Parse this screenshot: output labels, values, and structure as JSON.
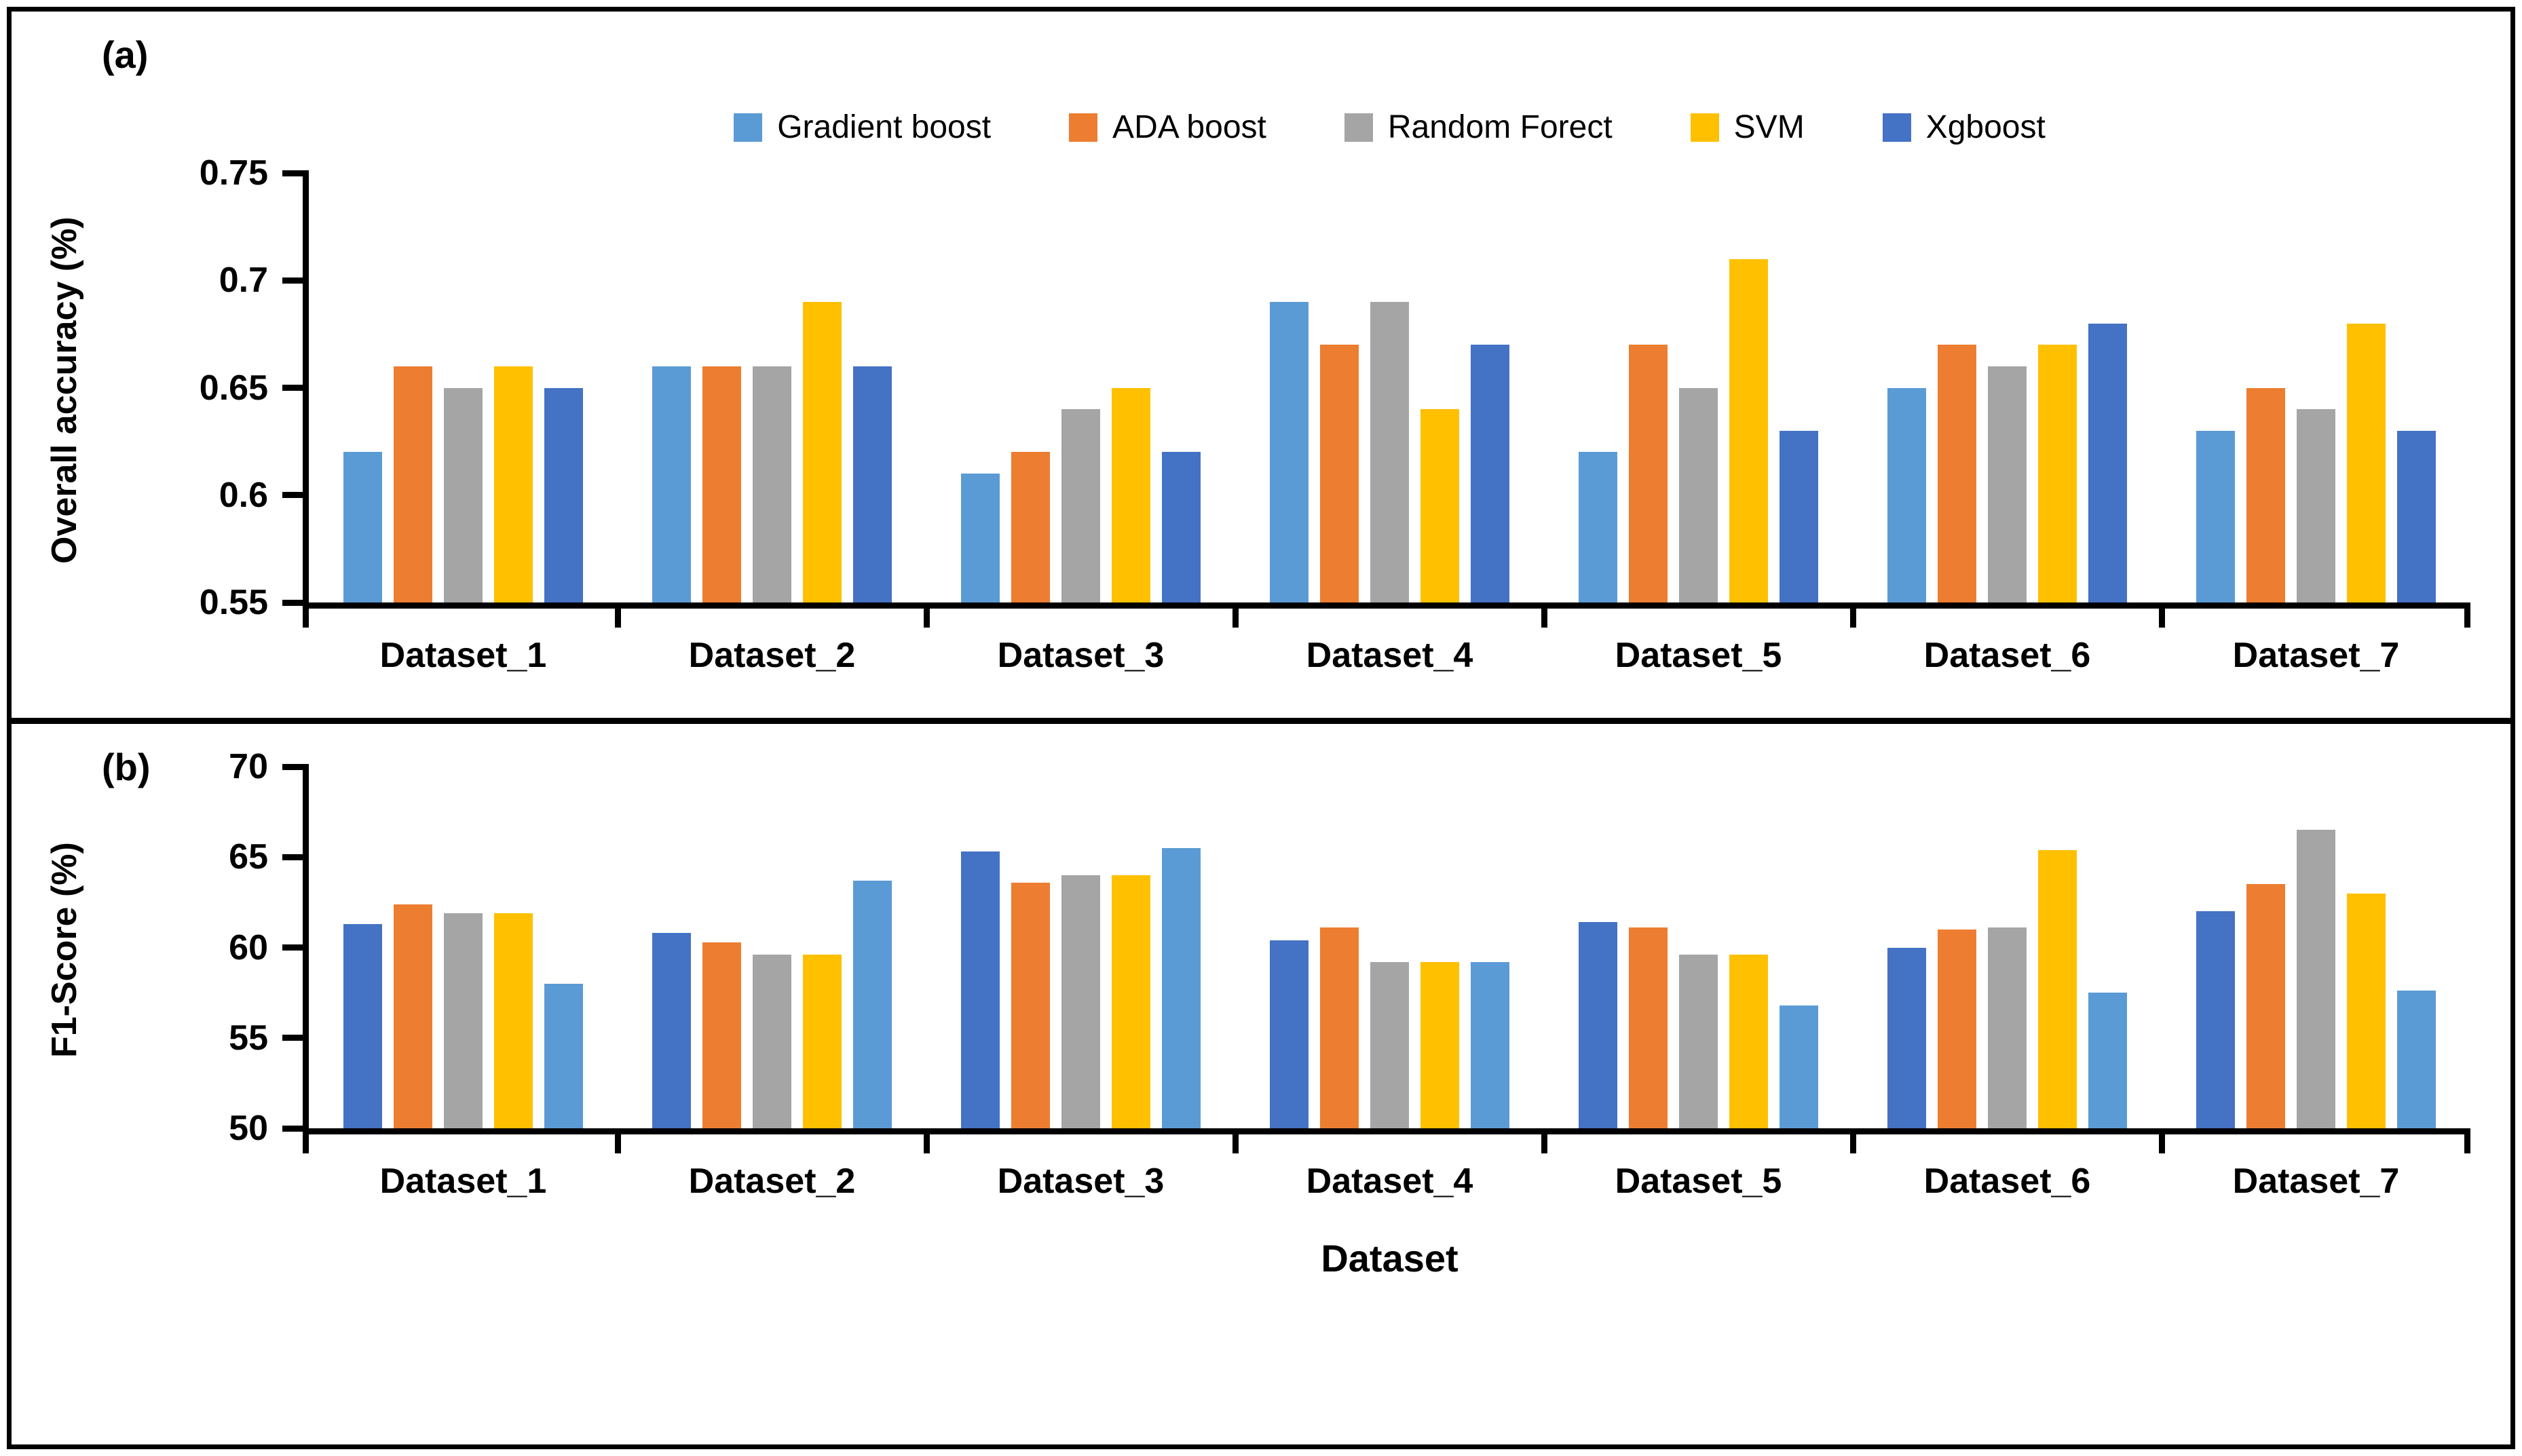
{
  "figure": {
    "panel_a_tag": "(a)",
    "panel_b_tag": "(b)",
    "background_color": "#ffffff",
    "border_color": "#000000"
  },
  "legend": {
    "position": "top-center",
    "items": [
      {
        "label": "Gradient boost",
        "color": "#5B9BD5"
      },
      {
        "label": "ADA boost",
        "color": "#ED7D31"
      },
      {
        "label": "Random Forect",
        "color": "#A5A5A5"
      },
      {
        "label": "SVM",
        "color": "#FFC000"
      },
      {
        "label": "Xgboost",
        "color": "#4472C4"
      }
    ]
  },
  "chart_data": [
    {
      "id": "a",
      "type": "bar",
      "panel_tag": "(a)",
      "title": "",
      "xlabel": "",
      "ylabel": "Overall accuracy (%)",
      "ylim": [
        0.55,
        0.75
      ],
      "y_ticks": [
        0.75,
        0.7,
        0.65,
        0.6,
        0.55
      ],
      "y_tick_labels": [
        "0.75",
        "0.7",
        "0.65",
        "0.6",
        "0.55"
      ],
      "grid": false,
      "legend_position": "top",
      "show_legend": true,
      "categories": [
        "Dataset_1",
        "Dataset_2",
        "Dataset_3",
        "Dataset_4",
        "Dataset_5",
        "Dataset_6",
        "Dataset_7"
      ],
      "series": [
        {
          "name": "Gradient boost",
          "color": "#5B9BD5",
          "values": [
            0.62,
            0.66,
            0.61,
            0.69,
            0.62,
            0.65,
            0.63
          ]
        },
        {
          "name": "ADA boost",
          "color": "#ED7D31",
          "values": [
            0.66,
            0.66,
            0.62,
            0.67,
            0.67,
            0.67,
            0.65
          ]
        },
        {
          "name": "Random Forect",
          "color": "#A5A5A5",
          "values": [
            0.65,
            0.66,
            0.64,
            0.69,
            0.65,
            0.66,
            0.64
          ]
        },
        {
          "name": "SVM",
          "color": "#FFC000",
          "values": [
            0.66,
            0.69,
            0.65,
            0.64,
            0.71,
            0.67,
            0.68
          ]
        },
        {
          "name": "Xgboost",
          "color": "#4472C4",
          "values": [
            0.65,
            0.66,
            0.62,
            0.67,
            0.63,
            0.68,
            0.63
          ]
        }
      ]
    },
    {
      "id": "b",
      "type": "bar",
      "panel_tag": "(b)",
      "title": "",
      "xlabel": "Dataset",
      "ylabel": "F1-Score (%)",
      "ylim": [
        50,
        70
      ],
      "y_ticks": [
        70,
        65,
        60,
        55,
        50
      ],
      "y_tick_labels": [
        "70",
        "65",
        "60",
        "55",
        "50"
      ],
      "grid": false,
      "legend_position": "none",
      "show_legend": false,
      "categories": [
        "Dataset_1",
        "Dataset_2",
        "Dataset_3",
        "Dataset_4",
        "Dataset_5",
        "Dataset_6",
        "Dataset_7"
      ],
      "series": [
        {
          "name": "Xgboost",
          "color": "#4472C4",
          "values": [
            61.3,
            60.8,
            65.3,
            60.4,
            61.4,
            60.0,
            62.0
          ]
        },
        {
          "name": "ADA boost",
          "color": "#ED7D31",
          "values": [
            62.4,
            60.3,
            63.6,
            61.1,
            61.1,
            61.0,
            63.5
          ]
        },
        {
          "name": "Random Forect",
          "color": "#A5A5A5",
          "values": [
            61.9,
            59.6,
            64.0,
            59.2,
            59.6,
            61.1,
            66.5
          ]
        },
        {
          "name": "SVM",
          "color": "#FFC000",
          "values": [
            61.9,
            59.6,
            64.0,
            59.2,
            59.6,
            65.4,
            63.0
          ]
        },
        {
          "name": "Gradient boost",
          "color": "#5B9BD5",
          "values": [
            58.0,
            63.7,
            65.5,
            59.2,
            56.8,
            57.5,
            57.6
          ]
        }
      ]
    }
  ]
}
